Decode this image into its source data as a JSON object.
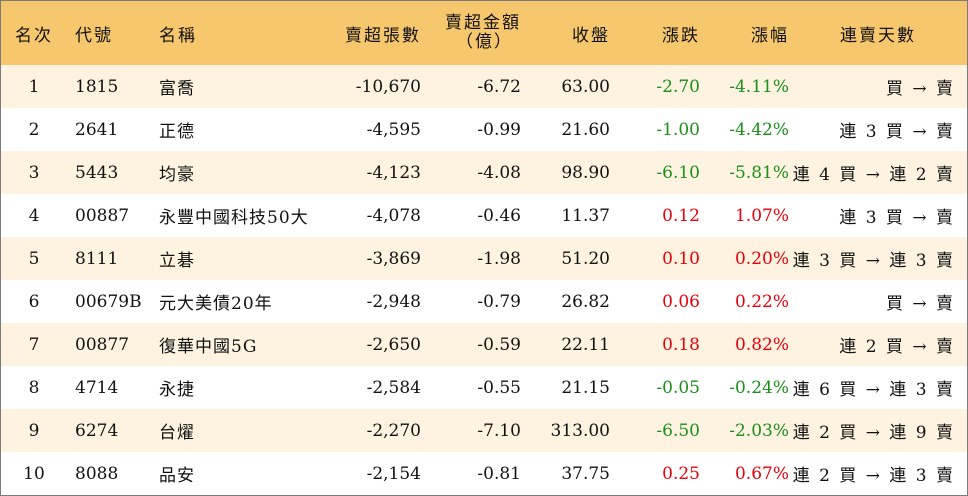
{
  "headers": {
    "rank": "名次",
    "code": "代號",
    "name": "名稱",
    "net_sell_volume": "賣超張數",
    "net_sell_amount": "賣超金額",
    "net_sell_amount_unit": "（億）",
    "close": "收盤",
    "change": "漲跌",
    "change_pct": "漲幅",
    "streak": "連賣天數"
  },
  "colors": {
    "header_bg": "#f6c76c",
    "stripe_bg": "#fdf3e0",
    "up": "#e8000b",
    "down": "#1a8f1a"
  },
  "rows": [
    {
      "rank": "1",
      "code": "1815",
      "name": "富喬",
      "vol": "-10,670",
      "amt": "-6.72",
      "close": "63.00",
      "chg": "-2.70",
      "pct": "-4.11%",
      "dir": "down",
      "streak": "買 → 賣"
    },
    {
      "rank": "2",
      "code": "2641",
      "name": "正德",
      "vol": "-4,595",
      "amt": "-0.99",
      "close": "21.60",
      "chg": "-1.00",
      "pct": "-4.42%",
      "dir": "down",
      "streak": "連 3 買 → 賣"
    },
    {
      "rank": "3",
      "code": "5443",
      "name": "均豪",
      "vol": "-4,123",
      "amt": "-4.08",
      "close": "98.90",
      "chg": "-6.10",
      "pct": "-5.81%",
      "dir": "down",
      "streak": "連 4 買 → 連 2 賣"
    },
    {
      "rank": "4",
      "code": "00887",
      "name": "永豐中國科技50大",
      "vol": "-4,078",
      "amt": "-0.46",
      "close": "11.37",
      "chg": "0.12",
      "pct": "1.07%",
      "dir": "up",
      "streak": "連 3 買 → 賣"
    },
    {
      "rank": "5",
      "code": "8111",
      "name": "立碁",
      "vol": "-3,869",
      "amt": "-1.98",
      "close": "51.20",
      "chg": "0.10",
      "pct": "0.20%",
      "dir": "up",
      "streak": "連 3 買 → 連 3 賣"
    },
    {
      "rank": "6",
      "code": "00679B",
      "name": "元大美債20年",
      "vol": "-2,948",
      "amt": "-0.79",
      "close": "26.82",
      "chg": "0.06",
      "pct": "0.22%",
      "dir": "up",
      "streak": "買 → 賣"
    },
    {
      "rank": "7",
      "code": "00877",
      "name": "復華中國5G",
      "vol": "-2,650",
      "amt": "-0.59",
      "close": "22.11",
      "chg": "0.18",
      "pct": "0.82%",
      "dir": "up",
      "streak": "連 2 買 → 賣"
    },
    {
      "rank": "8",
      "code": "4714",
      "name": "永捷",
      "vol": "-2,584",
      "amt": "-0.55",
      "close": "21.15",
      "chg": "-0.05",
      "pct": "-0.24%",
      "dir": "down",
      "streak": "連 6 買 → 連 3 賣"
    },
    {
      "rank": "9",
      "code": "6274",
      "name": "台燿",
      "vol": "-2,270",
      "amt": "-7.10",
      "close": "313.00",
      "chg": "-6.50",
      "pct": "-2.03%",
      "dir": "down",
      "streak": "連 2 買 → 連 9 賣"
    },
    {
      "rank": "10",
      "code": "8088",
      "name": "品安",
      "vol": "-2,154",
      "amt": "-0.81",
      "close": "37.75",
      "chg": "0.25",
      "pct": "0.67%",
      "dir": "up",
      "streak": "連 2 買 → 連 3 賣"
    }
  ]
}
